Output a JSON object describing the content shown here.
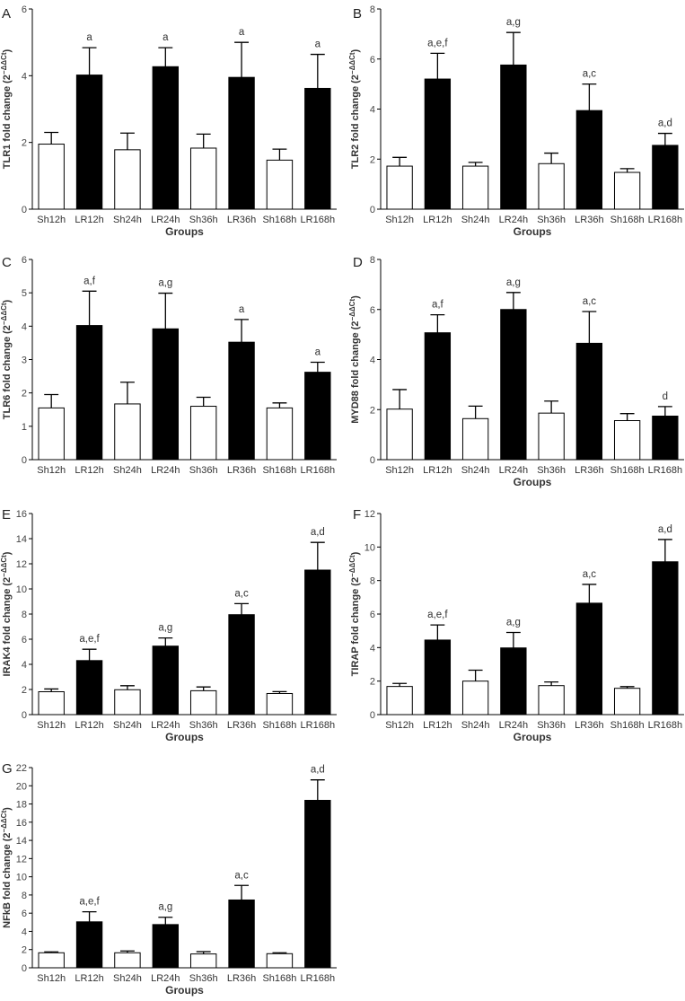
{
  "figure": {
    "colors": {
      "sham": "#ffffff",
      "lr": "#000000",
      "stroke": "#000000",
      "text": "#333333"
    }
  },
  "chart_data": [
    {
      "type": "bar",
      "letter": "A",
      "ylabel_main": "TLR1 fold change (2",
      "ylabel_sup": "−ΔΔCt",
      "ylabel_close": ")",
      "xlabel": "Groups",
      "ylim": [
        0,
        6
      ],
      "yticks": [
        0,
        2,
        4,
        6
      ],
      "categories": [
        "Sh12h",
        "LR12h",
        "Sh24h",
        "LR24h",
        "Sh36h",
        "LR36h",
        "Sh168h",
        "LR168h"
      ],
      "values": [
        1.95,
        4.02,
        1.78,
        4.27,
        1.83,
        3.95,
        1.47,
        3.62
      ],
      "errors": [
        0.35,
        0.82,
        0.5,
        0.57,
        0.42,
        1.05,
        0.33,
        1.02
      ],
      "labels": [
        "",
        "a",
        "",
        "a",
        "",
        "a",
        "",
        "a"
      ]
    },
    {
      "type": "bar",
      "letter": "B",
      "ylabel_main": "TLR2 fold change (2",
      "ylabel_sup": "−ΔΔCt",
      "ylabel_close": ")",
      "xlabel": "Groups",
      "ylim": [
        0,
        8
      ],
      "yticks": [
        0,
        2,
        4,
        6,
        8
      ],
      "categories": [
        "Sh12h",
        "LR12h",
        "Sh24h",
        "LR24h",
        "Sh36h",
        "LR36h",
        "Sh168h",
        "LR168h"
      ],
      "values": [
        1.72,
        5.2,
        1.72,
        5.76,
        1.82,
        3.94,
        1.47,
        2.55
      ],
      "errors": [
        0.35,
        1.03,
        0.15,
        1.3,
        0.42,
        1.06,
        0.15,
        0.48
      ],
      "labels": [
        "",
        "a,e,f",
        "",
        "a,g",
        "",
        "a,c",
        "",
        "a,d"
      ]
    },
    {
      "type": "bar",
      "letter": "C",
      "ylabel_main": "TLR6 fold change (2",
      "ylabel_sup": "−ΔΔCt",
      "ylabel_close": ")",
      "xlabel": "",
      "ylim": [
        0,
        6
      ],
      "yticks": [
        0,
        1,
        2,
        3,
        4,
        5,
        6
      ],
      "categories": [
        "Sh12h",
        "LR12h",
        "Sh24h",
        "LR24h",
        "Sh36h",
        "LR36h",
        "Sh168h",
        "LR168h"
      ],
      "values": [
        1.55,
        4.02,
        1.67,
        3.92,
        1.6,
        3.52,
        1.55,
        2.62
      ],
      "errors": [
        0.4,
        1.03,
        0.65,
        1.07,
        0.27,
        0.68,
        0.15,
        0.3
      ],
      "labels": [
        "",
        "a,f",
        "",
        "a,g",
        "",
        "a",
        "",
        "a"
      ]
    },
    {
      "type": "bar",
      "letter": "D",
      "ylabel_main": "MYD88 fold change (2",
      "ylabel_sup": "−ΔΔCt",
      "ylabel_close": ")",
      "xlabel": "Groups",
      "ylim": [
        0,
        8
      ],
      "yticks": [
        0,
        2,
        4,
        6,
        8
      ],
      "categories": [
        "Sh12h",
        "LR12h",
        "Sh24h",
        "LR24h",
        "Sh36h",
        "LR36h",
        "Sh168h",
        "LR168h"
      ],
      "values": [
        2.02,
        5.07,
        1.64,
        6.0,
        1.86,
        4.65,
        1.56,
        1.74
      ],
      "errors": [
        0.78,
        0.72,
        0.5,
        0.68,
        0.48,
        1.27,
        0.28,
        0.38
      ],
      "labels": [
        "",
        "a,f",
        "",
        "a,g",
        "",
        "a,c",
        "",
        "d"
      ]
    },
    {
      "type": "bar",
      "letter": "E",
      "ylabel_main": "IRAK4 fold change (2",
      "ylabel_sup": "−ΔΔCt",
      "ylabel_close": ")",
      "xlabel": "Groups",
      "ylim": [
        0,
        16
      ],
      "yticks": [
        0,
        2,
        4,
        6,
        8,
        10,
        12,
        14,
        16
      ],
      "categories": [
        "Sh12h",
        "LR12h",
        "Sh24h",
        "LR24h",
        "Sh36h",
        "LR36h",
        "Sh168h",
        "LR168h"
      ],
      "values": [
        1.82,
        4.3,
        1.98,
        5.45,
        1.9,
        7.95,
        1.68,
        11.5
      ],
      "errors": [
        0.22,
        0.9,
        0.32,
        0.65,
        0.3,
        0.88,
        0.15,
        2.2
      ],
      "labels": [
        "",
        "a,e,f",
        "",
        "a,g",
        "",
        "a,c",
        "",
        "a,d"
      ]
    },
    {
      "type": "bar",
      "letter": "F",
      "ylabel_main": "TIRAP fold change (2",
      "ylabel_sup": "−ΔΔCt",
      "ylabel_close": ")",
      "xlabel": "Groups",
      "ylim": [
        0,
        12
      ],
      "yticks": [
        0,
        2,
        4,
        6,
        8,
        10,
        12
      ],
      "categories": [
        "Sh12h",
        "LR12h",
        "Sh24h",
        "LR24h",
        "Sh36h",
        "LR36h",
        "Sh168h",
        "LR168h"
      ],
      "values": [
        1.68,
        4.45,
        2.0,
        3.98,
        1.73,
        6.65,
        1.57,
        9.12
      ],
      "errors": [
        0.18,
        0.9,
        0.65,
        0.92,
        0.22,
        1.12,
        0.1,
        1.33
      ],
      "labels": [
        "",
        "a,e,f",
        "",
        "a,g",
        "",
        "a,c",
        "",
        "a,d"
      ]
    },
    {
      "type": "bar",
      "letter": "G",
      "ylabel_main": "NFkB fold change (2",
      "ylabel_sup": "−ΔΔCt",
      "ylabel_close": ")",
      "xlabel": "Groups",
      "ylim": [
        0,
        22
      ],
      "yticks": [
        0,
        2,
        4,
        6,
        8,
        10,
        12,
        14,
        16,
        18,
        20,
        22
      ],
      "categories": [
        "Sh12h",
        "LR12h",
        "Sh24h",
        "LR24h",
        "Sh36h",
        "LR36h",
        "Sh168h",
        "LR168h"
      ],
      "values": [
        1.65,
        5.05,
        1.65,
        4.75,
        1.52,
        7.45,
        1.55,
        18.4
      ],
      "errors": [
        0.1,
        1.1,
        0.2,
        0.8,
        0.25,
        1.6,
        0.1,
        2.25
      ],
      "labels": [
        "",
        "a,e,f",
        "",
        "a,g",
        "",
        "a,c",
        "",
        "a,d"
      ]
    }
  ]
}
